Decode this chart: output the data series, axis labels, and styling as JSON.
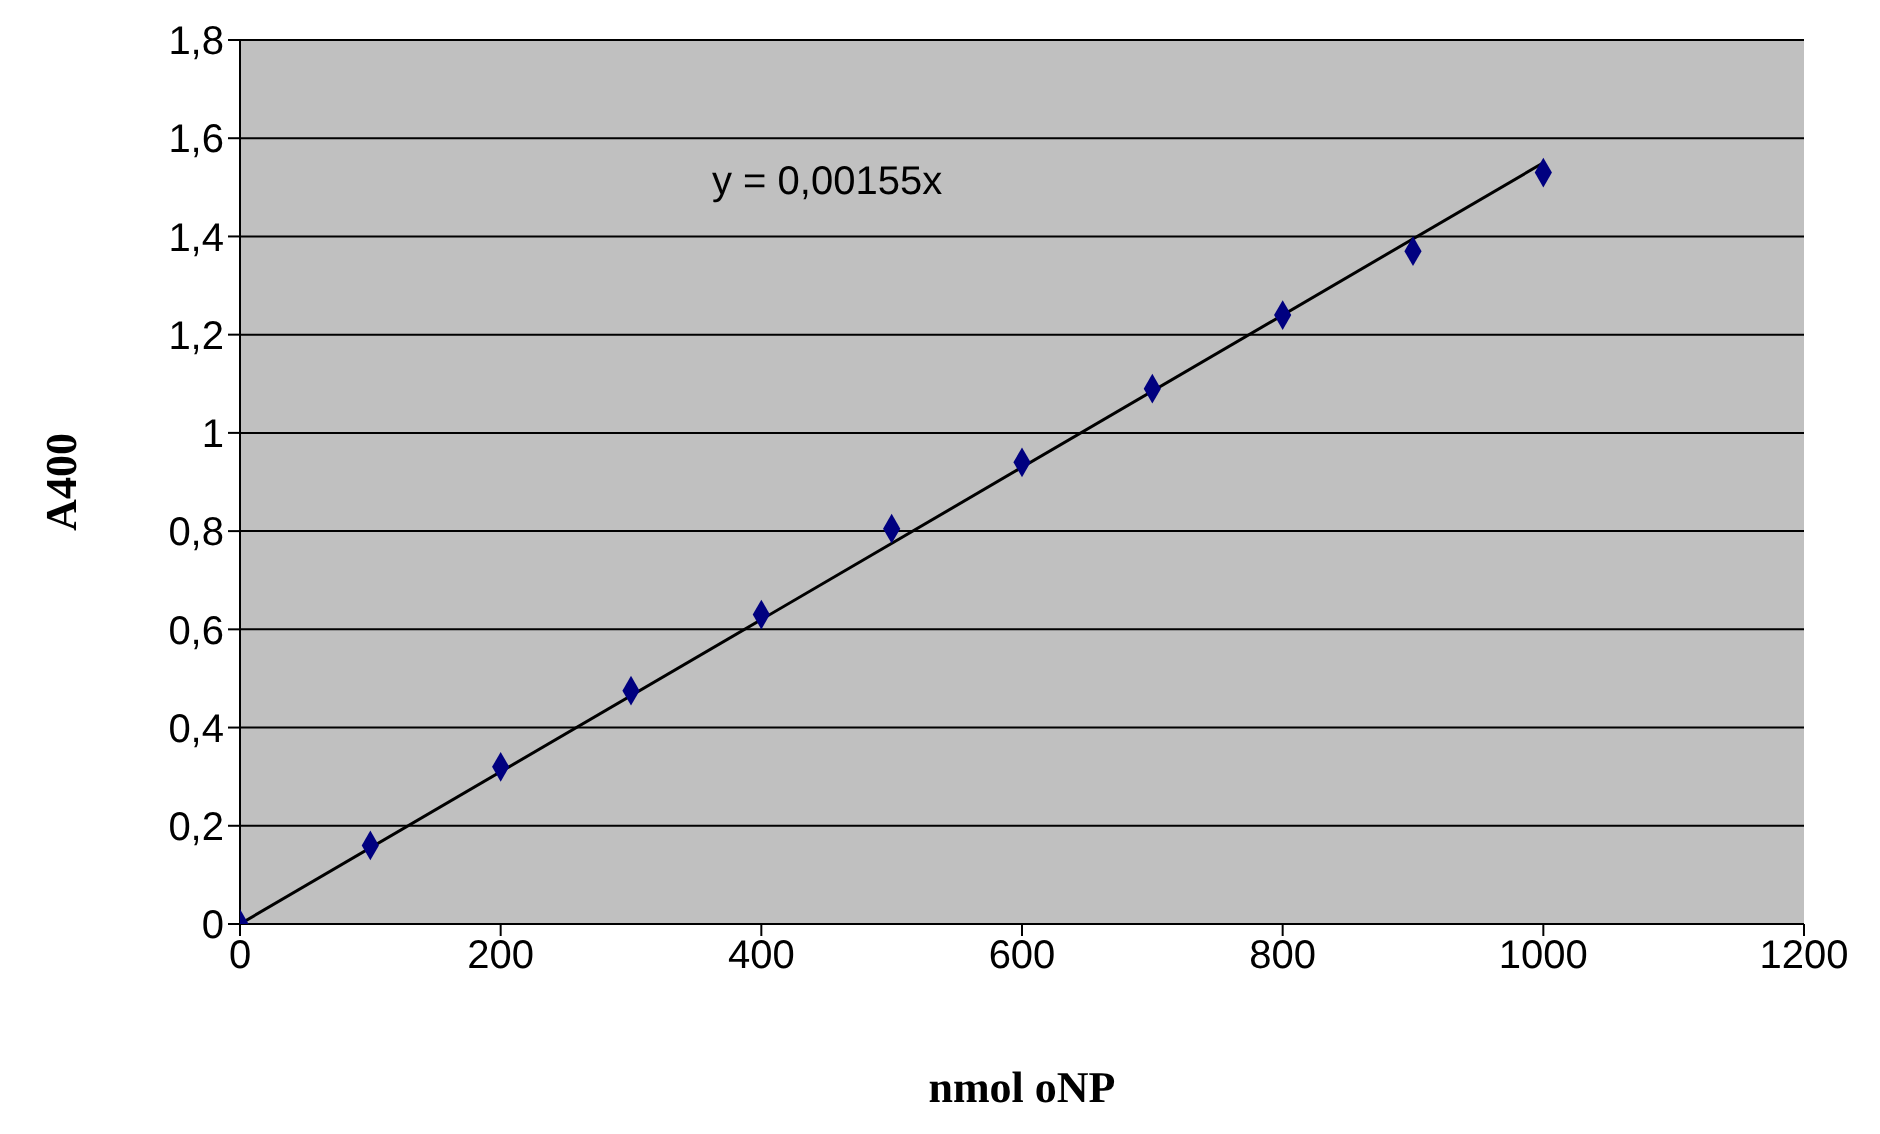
{
  "chart_data": {
    "type": "scatter",
    "xlabel": "nmol oNP",
    "ylabel": "A400",
    "x": [
      0,
      100,
      200,
      300,
      400,
      500,
      600,
      700,
      800,
      900,
      1000
    ],
    "series": [
      {
        "color": "#000080",
        "marker": "diamond",
        "values": [
          0,
          0.16,
          0.32,
          0.475,
          0.63,
          0.805,
          0.94,
          1.09,
          1.24,
          1.37,
          1.53
        ]
      },
      {
        "type": "line",
        "color": "#000000",
        "marker": "none",
        "line_style": "solid",
        "x": [
          0,
          1000
        ],
        "values": [
          0,
          1.55
        ]
      }
    ],
    "annotations": [
      "y = 0,00155x"
    ],
    "xlim": [
      0,
      1200
    ],
    "xticks": [
      0,
      200,
      400,
      600,
      800,
      1000,
      1200
    ],
    "ylim": [
      0,
      1.8
    ],
    "yticks": [
      0,
      {
        "value": 0.2,
        "label": "0,2"
      },
      {
        "value": 0.4,
        "label": "0,4"
      },
      {
        "value": 0.6,
        "label": "0,6"
      },
      {
        "value": 0.8,
        "label": "0,8"
      },
      1,
      {
        "value": 1.2,
        "label": "1,2"
      },
      {
        "value": 1.4,
        "label": "1,4"
      },
      {
        "value": 1.6,
        "label": "1,6"
      },
      {
        "value": 1.8,
        "label": "1,8"
      }
    ],
    "grid": "y",
    "legend": false
  }
}
